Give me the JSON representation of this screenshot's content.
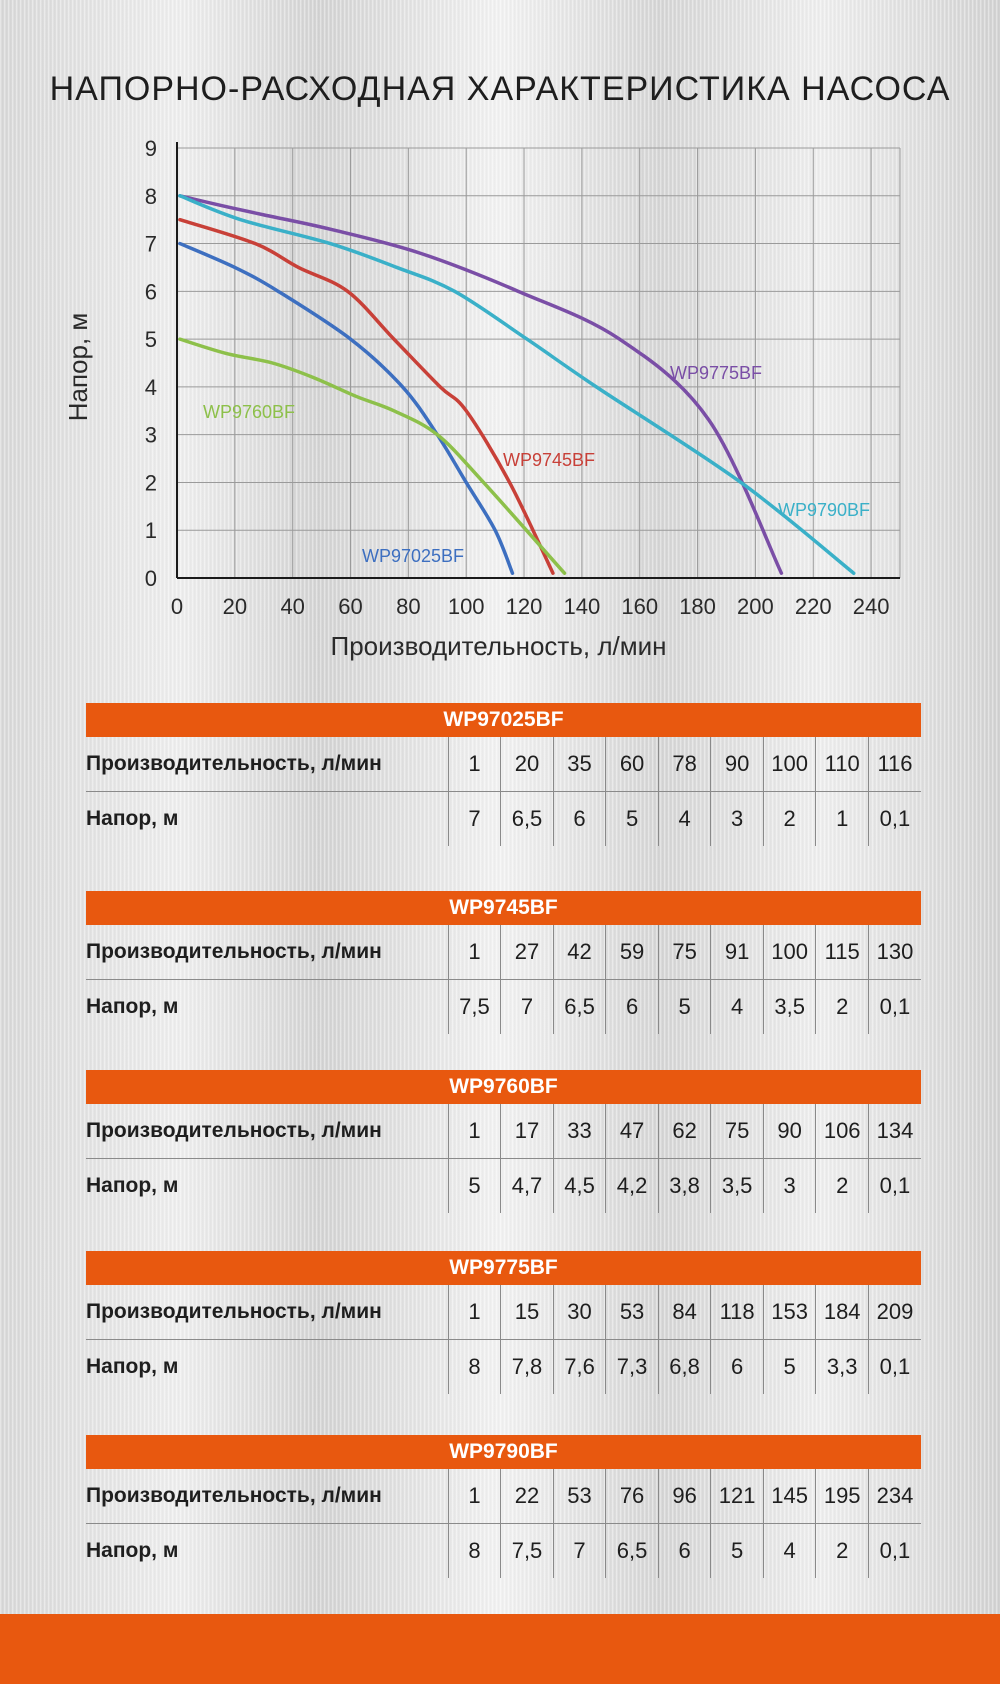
{
  "title": "НАПОРНО-РАСХОДНАЯ ХАРАКТЕРИСТИКА НАСОСА",
  "colors": {
    "accent": "#e8580f"
  },
  "chart_data": {
    "type": "line",
    "xlabel": "Производительность, л/мин",
    "ylabel": "Напор, м",
    "xlim": [
      0,
      250
    ],
    "ylim": [
      0,
      9
    ],
    "x_ticks": [
      0,
      20,
      40,
      60,
      80,
      100,
      120,
      140,
      160,
      180,
      200,
      220,
      240
    ],
    "y_ticks": [
      0,
      1,
      2,
      3,
      4,
      5,
      6,
      7,
      8,
      9
    ],
    "series": [
      {
        "name": "WP97025BF",
        "color": "#3d6fc0",
        "x": [
          1,
          20,
          35,
          60,
          78,
          90,
          100,
          110,
          116
        ],
        "y": [
          7,
          6.5,
          6,
          5,
          4,
          3,
          2,
          1,
          0.1
        ]
      },
      {
        "name": "WP9745BF",
        "color": "#c84038",
        "x": [
          1,
          27,
          42,
          59,
          75,
          91,
          100,
          115,
          130
        ],
        "y": [
          7.5,
          7,
          6.5,
          6,
          5,
          4,
          3.5,
          2,
          0.1
        ]
      },
      {
        "name": "WP9760BF",
        "color": "#8dc04a",
        "x": [
          1,
          17,
          33,
          47,
          62,
          75,
          90,
          106,
          134
        ],
        "y": [
          5,
          4.7,
          4.5,
          4.2,
          3.8,
          3.5,
          3,
          2,
          0.1
        ]
      },
      {
        "name": "WP9775BF",
        "color": "#7a4ea6",
        "x": [
          1,
          15,
          30,
          53,
          84,
          118,
          153,
          184,
          209
        ],
        "y": [
          8,
          7.8,
          7.6,
          7.3,
          6.8,
          6,
          5,
          3.3,
          0.1
        ]
      },
      {
        "name": "WP9790BF",
        "color": "#3ab0c8",
        "x": [
          1,
          22,
          53,
          76,
          96,
          121,
          145,
          195,
          234
        ],
        "y": [
          8,
          7.5,
          7,
          6.5,
          6,
          5,
          4,
          2,
          0.1
        ]
      }
    ]
  },
  "tables": [
    {
      "model": "WP97025BF",
      "flow_label": "Производительность, л/мин",
      "head_label": "Напор, м",
      "flow": [
        "1",
        "20",
        "35",
        "60",
        "78",
        "90",
        "100",
        "110",
        "116"
      ],
      "head": [
        "7",
        "6,5",
        "6",
        "5",
        "4",
        "3",
        "2",
        "1",
        "0,1"
      ]
    },
    {
      "model": "WP9745BF",
      "flow_label": "Производительность, л/мин",
      "head_label": "Напор, м",
      "flow": [
        "1",
        "27",
        "42",
        "59",
        "75",
        "91",
        "100",
        "115",
        "130"
      ],
      "head": [
        "7,5",
        "7",
        "6,5",
        "6",
        "5",
        "4",
        "3,5",
        "2",
        "0,1"
      ]
    },
    {
      "model": "WP9760BF",
      "flow_label": "Производительность, л/мин",
      "head_label": "Напор, м",
      "flow": [
        "1",
        "17",
        "33",
        "47",
        "62",
        "75",
        "90",
        "106",
        "134"
      ],
      "head": [
        "5",
        "4,7",
        "4,5",
        "4,2",
        "3,8",
        "3,5",
        "3",
        "2",
        "0,1"
      ]
    },
    {
      "model": "WP9775BF",
      "flow_label": "Производительность, л/мин",
      "head_label": "Напор, м",
      "flow": [
        "1",
        "15",
        "30",
        "53",
        "84",
        "118",
        "153",
        "184",
        "209"
      ],
      "head": [
        "8",
        "7,8",
        "7,6",
        "7,3",
        "6,8",
        "6",
        "5",
        "3,3",
        "0,1"
      ]
    },
    {
      "model": "WP9790BF",
      "flow_label": "Производительность, л/мин",
      "head_label": "Напор, м",
      "flow": [
        "1",
        "22",
        "53",
        "76",
        "96",
        "121",
        "145",
        "195",
        "234"
      ],
      "head": [
        "8",
        "7,5",
        "7",
        "6,5",
        "6",
        "5",
        "4",
        "2",
        "0,1"
      ]
    }
  ]
}
